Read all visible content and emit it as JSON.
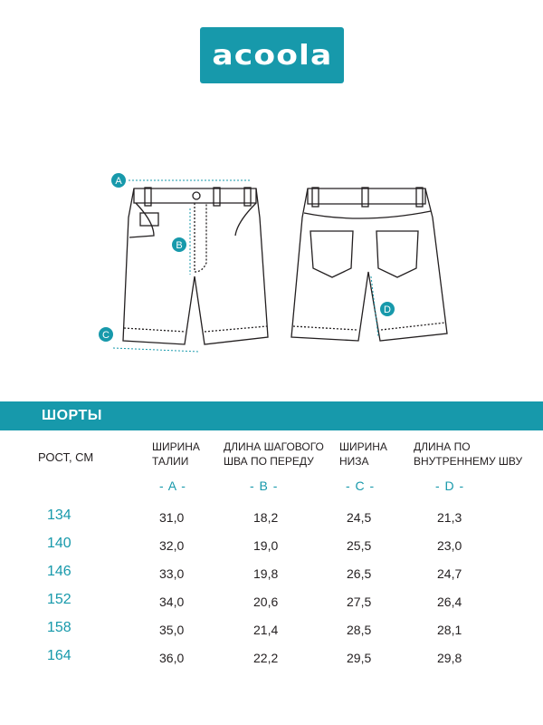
{
  "logo": {
    "text": "acoola"
  },
  "diagram": {
    "markers": [
      "A",
      "B",
      "C",
      "D"
    ]
  },
  "section_title": "ШОРТЫ",
  "table": {
    "row_header": "РОСТ, СМ",
    "columns": [
      {
        "title": "ШИРИНА\nТАЛИИ",
        "letter": "- A -"
      },
      {
        "title": "ДЛИНА ШАГОВОГО\nШВА ПО ПЕРЕДУ",
        "letter": "- B -"
      },
      {
        "title": "ШИРИНА\nНИЗА",
        "letter": "- C -"
      },
      {
        "title": "ДЛИНА ПО\nВНУТРЕННЕМУ ШВУ",
        "letter": "- D -"
      }
    ],
    "rows": [
      {
        "size": "134",
        "values": [
          "31,0",
          "18,2",
          "24,5",
          "21,3"
        ]
      },
      {
        "size": "140",
        "values": [
          "32,0",
          "19,0",
          "25,5",
          "23,0"
        ]
      },
      {
        "size": "146",
        "values": [
          "33,0",
          "19,8",
          "26,5",
          "24,7"
        ]
      },
      {
        "size": "152",
        "values": [
          "34,0",
          "20,6",
          "27,5",
          "26,4"
        ]
      },
      {
        "size": "158",
        "values": [
          "35,0",
          "21,4",
          "28,5",
          "28,1"
        ]
      },
      {
        "size": "164",
        "values": [
          "36,0",
          "22,2",
          "29,5",
          "29,8"
        ]
      }
    ]
  }
}
